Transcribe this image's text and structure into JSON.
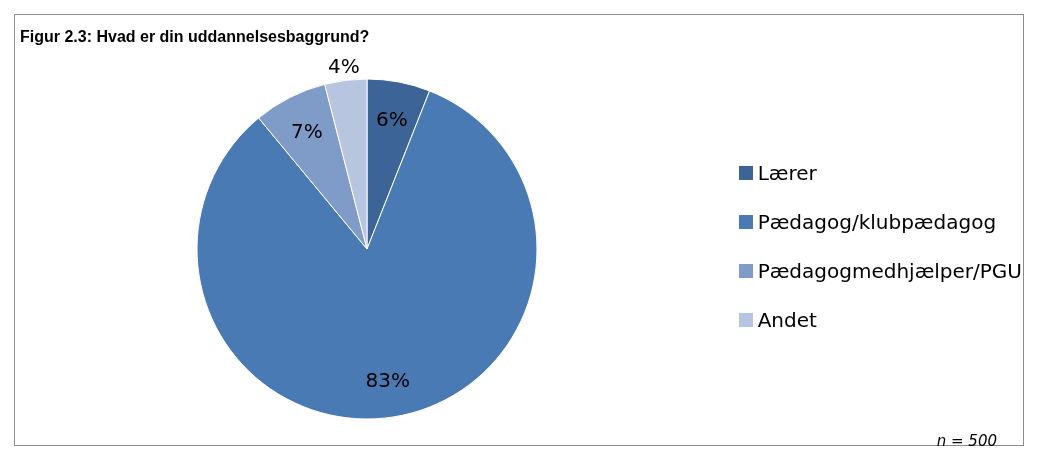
{
  "chart_data": {
    "type": "pie",
    "title": "Figur 2.3: Hvad er din uddannelsesbaggrund?",
    "categories": [
      "Lærer",
      "Pædagog/klubpædagog",
      "Pædagogmedhjælper/PGU",
      "Andet"
    ],
    "values": [
      6,
      83,
      7,
      4
    ],
    "colors": [
      "#3c6496",
      "#4a7ab4",
      "#7f9cc9",
      "#b7c5e0"
    ],
    "value_labels": [
      "6%",
      "83%",
      "7%",
      "4%"
    ],
    "legend": "right",
    "annotations": [
      "n = 500"
    ]
  }
}
